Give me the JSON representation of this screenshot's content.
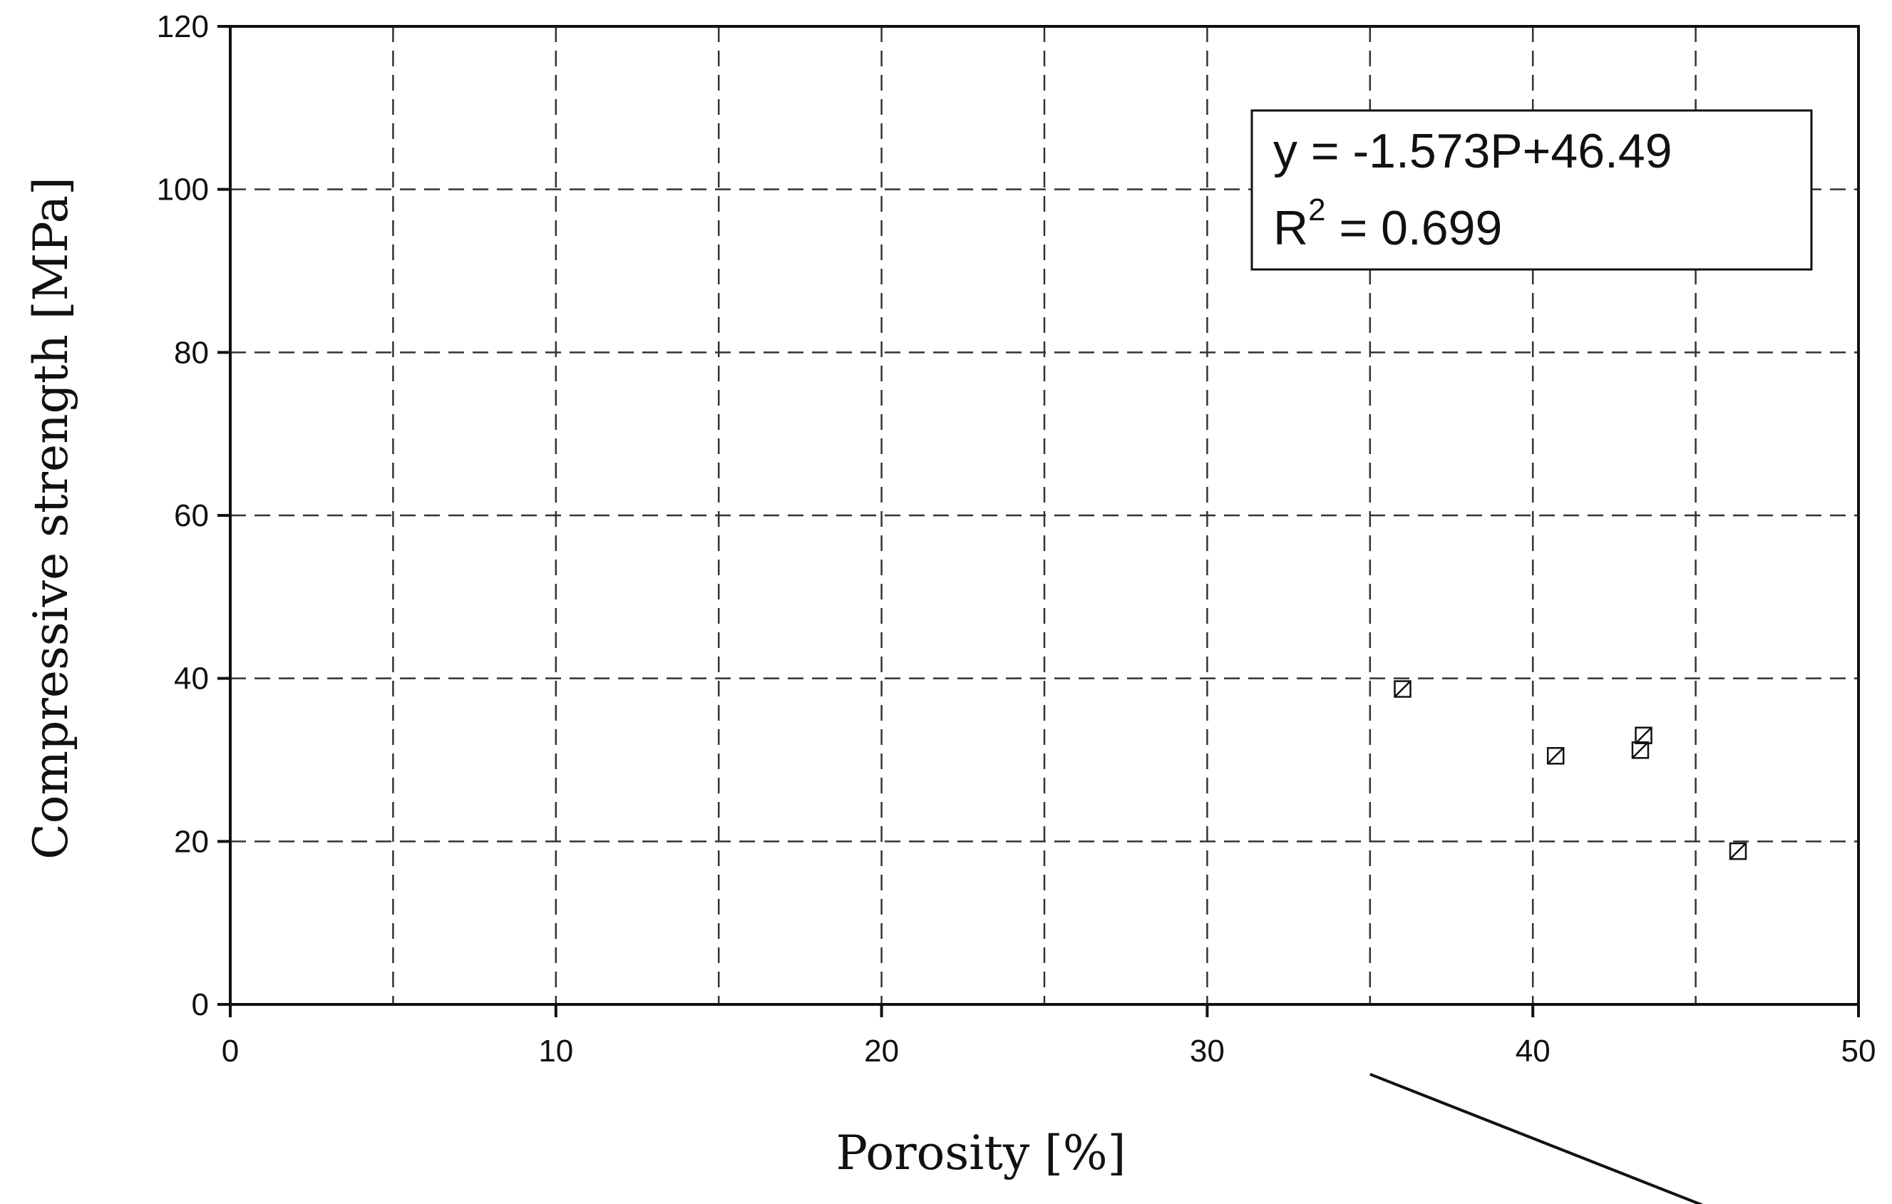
{
  "chart_data": {
    "type": "scatter",
    "xlabel": "Porosity [%]",
    "ylabel": "Compressive strength [MPa]",
    "xlim": [
      0,
      50
    ],
    "ylim": [
      0,
      120
    ],
    "x_ticks": [
      0,
      10,
      20,
      30,
      40,
      50
    ],
    "y_ticks": [
      0,
      20,
      40,
      60,
      80,
      100,
      120
    ],
    "x_gridlines": [
      5,
      10,
      15,
      20,
      25,
      30,
      35,
      40,
      45
    ],
    "y_gridlines": [
      20,
      40,
      60,
      80,
      100
    ],
    "grid": true,
    "marker": "square-with-diagonal",
    "points": [
      {
        "x": 36.0,
        "y": 38.7
      },
      {
        "x": 40.7,
        "y": 30.5
      },
      {
        "x": 43.3,
        "y": 31.2
      },
      {
        "x": 43.4,
        "y": 33.0
      },
      {
        "x": 46.3,
        "y": 18.8
      }
    ],
    "trendline": {
      "slope": -1.573,
      "intercept": 46.49,
      "x_start": 35,
      "x_end": 48,
      "equation_label": "y = -1.573P+46.49",
      "r2_prefix": "R",
      "r2_exponent": "2",
      "r2_value_text": " = 0.699",
      "box_position": "top-right"
    }
  }
}
